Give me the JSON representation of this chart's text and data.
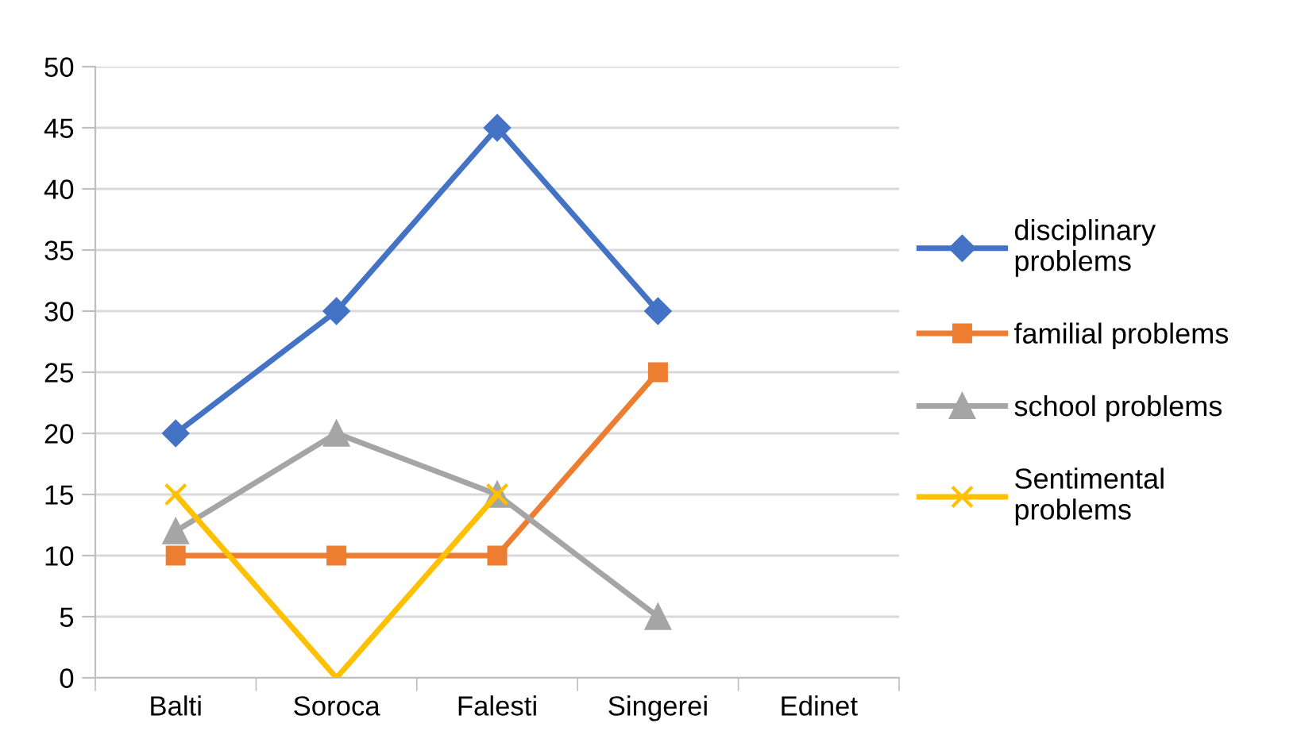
{
  "chart_data": {
    "type": "line",
    "categories": [
      "Balti",
      "Soroca",
      "Falesti",
      "Singerei",
      "Edinet"
    ],
    "series": [
      {
        "name": "disciplinary\nproblems",
        "color": "#4472c4",
        "marker": "diamond",
        "values": [
          20,
          30,
          45,
          30,
          null
        ]
      },
      {
        "name": "familial problems",
        "color": "#ed7d31",
        "marker": "square",
        "values": [
          10,
          10,
          10,
          25,
          null
        ]
      },
      {
        "name": "school problems",
        "color": "#a5a5a5",
        "marker": "triangle",
        "values": [
          12,
          20,
          15,
          5,
          null
        ]
      },
      {
        "name": "Sentimental\nproblems",
        "color": "#ffc000",
        "marker": "cross",
        "values": [
          15,
          0,
          15,
          null,
          null
        ]
      }
    ],
    "ylim": [
      0,
      50
    ],
    "yticks": [
      0,
      5,
      10,
      15,
      20,
      25,
      30,
      35,
      40,
      45,
      50
    ],
    "grid": "y",
    "legend": "right",
    "line_style": "solid"
  }
}
